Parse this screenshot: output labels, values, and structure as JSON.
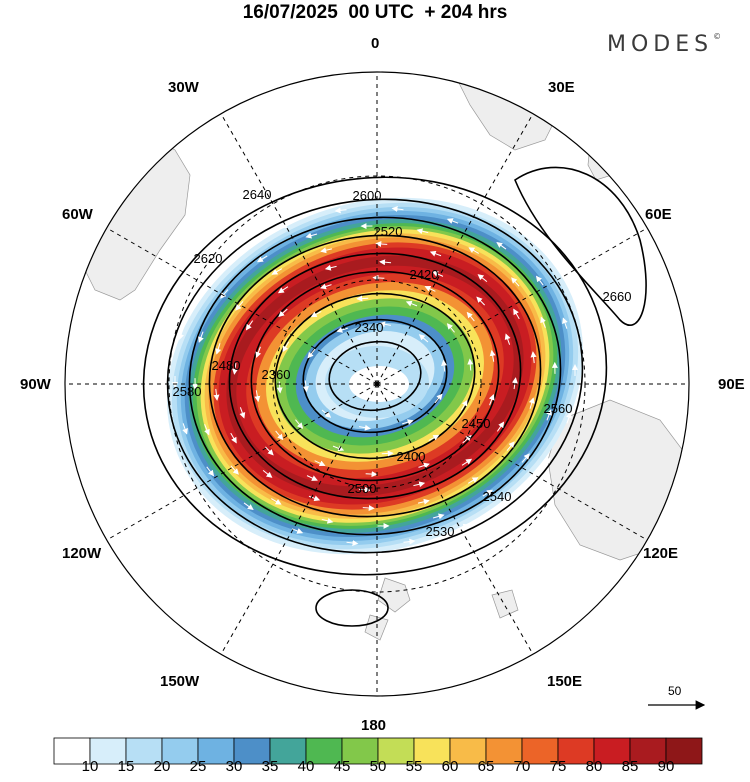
{
  "title": "16/07/2025  00 UTC  + 204 hrs",
  "brand": {
    "name": "MODES",
    "mark": "©"
  },
  "longitude_labels": [
    {
      "id": "0",
      "text": "0"
    },
    {
      "id": "30E",
      "text": "30E"
    },
    {
      "id": "60E",
      "text": "60E"
    },
    {
      "id": "90E",
      "text": "90E"
    },
    {
      "id": "120E",
      "text": "120E"
    },
    {
      "id": "150E",
      "text": "150E"
    },
    {
      "id": "180",
      "text": "180"
    },
    {
      "id": "150W",
      "text": "150W"
    },
    {
      "id": "120W",
      "text": "120W"
    },
    {
      "id": "90W",
      "text": "90W"
    },
    {
      "id": "60W",
      "text": "60W"
    },
    {
      "id": "30W",
      "text": "30W"
    }
  ],
  "contour_labels": [
    "2340",
    "2360",
    "2400",
    "2420",
    "2450",
    "2480",
    "2500",
    "2520",
    "2530",
    "2540",
    "2560",
    "2580",
    "2600",
    "2620",
    "2640",
    "2660"
  ],
  "reference_vector": {
    "value": "50"
  },
  "colorbar": {
    "ticks": [
      "10",
      "15",
      "20",
      "25",
      "30",
      "35",
      "40",
      "45",
      "50",
      "55",
      "60",
      "65",
      "70",
      "75",
      "80",
      "85",
      "90"
    ],
    "colors": [
      "#ffffff",
      "#d7eefa",
      "#b7dff5",
      "#94ccee",
      "#6eb2e2",
      "#4d8fc8",
      "#43a59a",
      "#4fb851",
      "#82c84a",
      "#c3dd56",
      "#f8e25a",
      "#f8bb48",
      "#f39234",
      "#ec6428",
      "#dd3a24",
      "#c91d22",
      "#a91b1f",
      "#8e1718"
    ]
  }
}
